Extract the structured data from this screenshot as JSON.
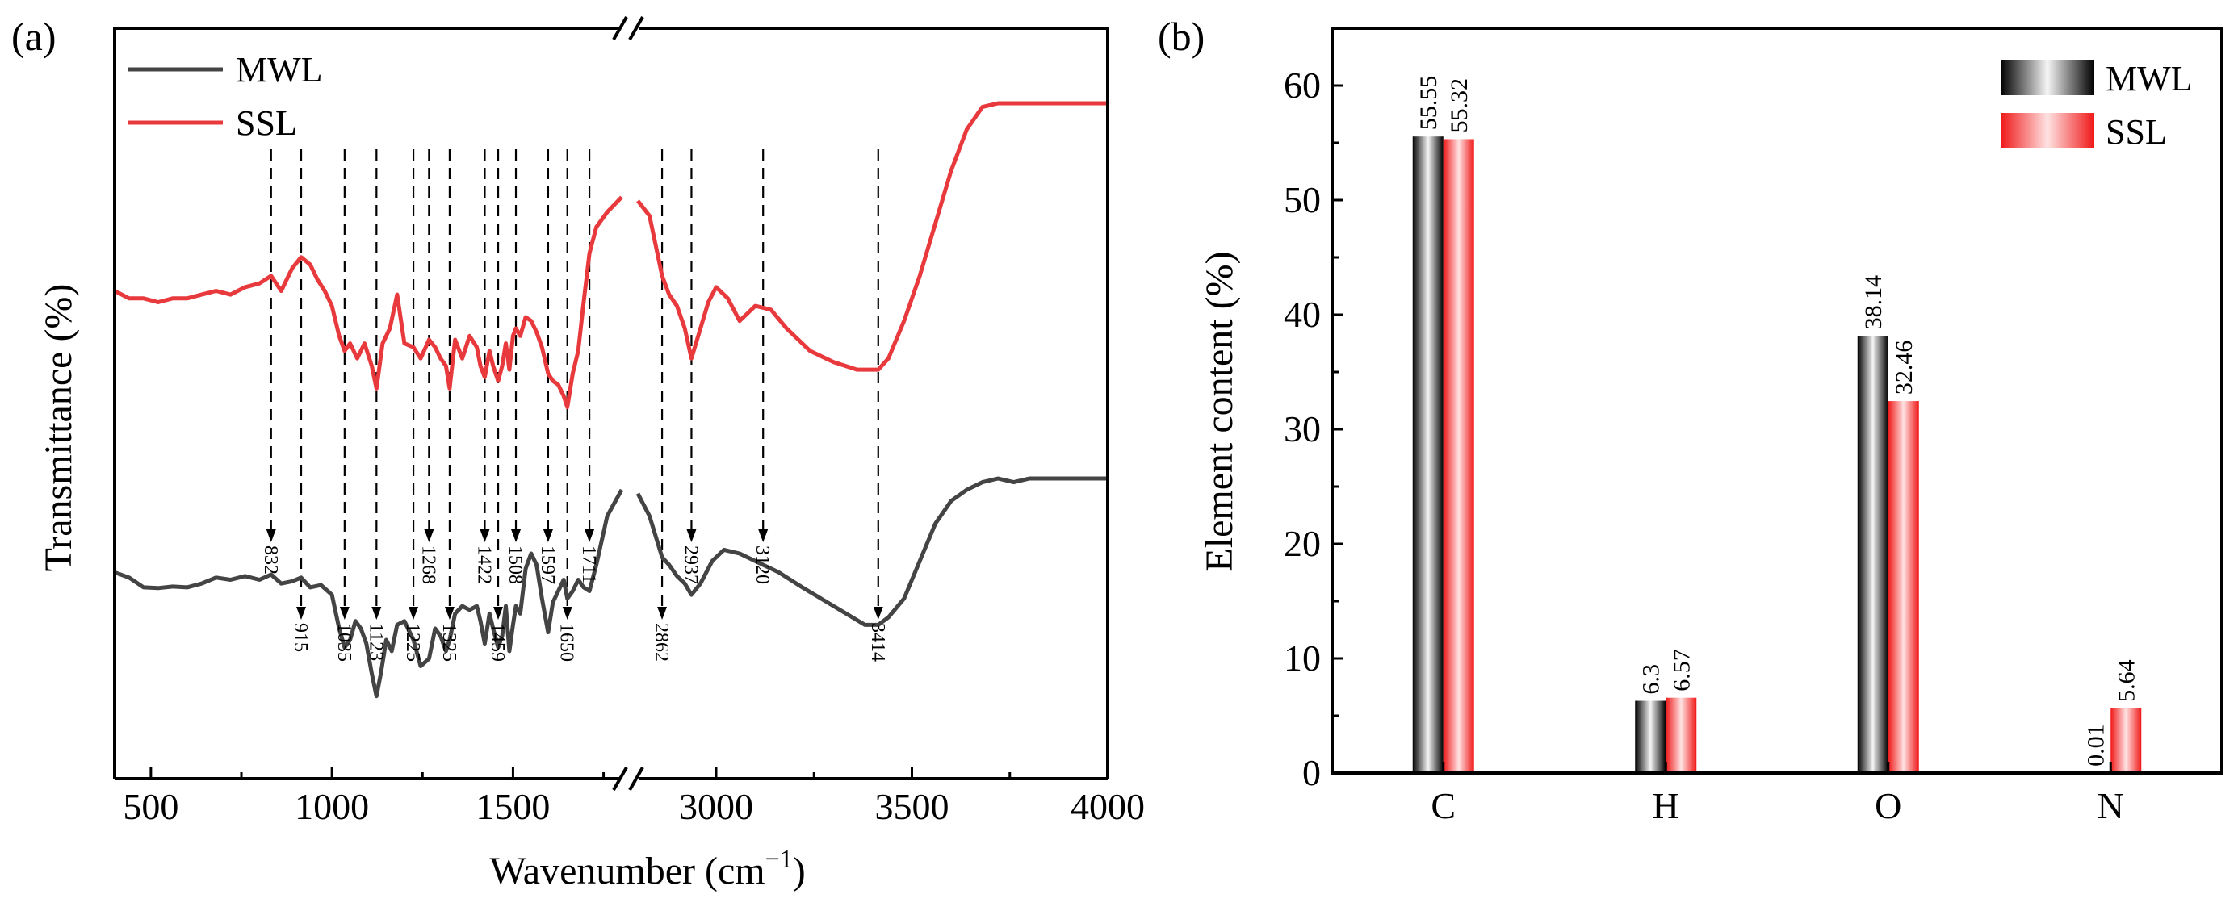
{
  "chart_data": [
    {
      "type": "line",
      "panel": "(a)",
      "title": "",
      "xlabel": "Wavenumber (cm",
      "xlabel_sup": "−1",
      "xlabel_close": ")",
      "ylabel": "Transmittance (%)",
      "xlim": [
        400,
        4000
      ],
      "axis_break": [
        1800,
        2800
      ],
      "xticks": [
        {
          "value": 500,
          "label": "500"
        },
        {
          "value": 1000,
          "label": "1000"
        },
        {
          "value": 1500,
          "label": "1500"
        },
        {
          "value": 3000,
          "label": "3000"
        },
        {
          "value": 3500,
          "label": "3500"
        },
        {
          "value": 4000,
          "label": "4000"
        }
      ],
      "legend": [
        "MWL",
        "SSL"
      ],
      "series": [
        {
          "name": "MWL",
          "color": "#444444",
          "x": [
            400,
            440,
            480,
            520,
            560,
            600,
            640,
            680,
            720,
            760,
            800,
            832,
            860,
            890,
            915,
            940,
            970,
            1000,
            1020,
            1035,
            1050,
            1065,
            1080,
            1095,
            1110,
            1123,
            1135,
            1150,
            1165,
            1180,
            1200,
            1225,
            1245,
            1268,
            1285,
            1300,
            1315,
            1325,
            1340,
            1360,
            1380,
            1400,
            1410,
            1422,
            1435,
            1445,
            1459,
            1470,
            1480,
            1490,
            1500,
            1508,
            1520,
            1535,
            1550,
            1565,
            1580,
            1597,
            1610,
            1625,
            1640,
            1650,
            1665,
            1680,
            1695,
            1711,
            1730,
            1760,
            1800,
            2800,
            2830,
            2862,
            2880,
            2900,
            2920,
            2937,
            2960,
            2990,
            3020,
            3060,
            3120,
            3160,
            3220,
            3300,
            3380,
            3414,
            3440,
            3480,
            3520,
            3560,
            3600,
            3640,
            3680,
            3720,
            3760,
            3800,
            3900,
            4000
          ],
          "y": [
            27.5,
            26.8,
            25.5,
            25.4,
            25.6,
            25.5,
            26.0,
            26.8,
            26.5,
            27.0,
            26.5,
            27.2,
            26.0,
            26.3,
            26.8,
            25.5,
            25.8,
            24.5,
            20.0,
            17.5,
            18.5,
            21.0,
            20.0,
            18.0,
            14.0,
            11.0,
            14.0,
            18.5,
            17.0,
            20.5,
            21.0,
            18.5,
            15.0,
            16.0,
            20.0,
            19.0,
            17.0,
            18.5,
            22.0,
            23.0,
            22.5,
            23.0,
            21.0,
            18.0,
            22.0,
            20.0,
            17.5,
            19.0,
            23.0,
            17.0,
            20.5,
            23.0,
            22.0,
            28.0,
            30.0,
            28.5,
            24.0,
            19.5,
            23.5,
            25.0,
            26.5,
            24.0,
            25.0,
            26.5,
            25.5,
            25.0,
            28.5,
            35.0,
            38.5,
            38.0,
            35.0,
            29.5,
            28.5,
            27.0,
            26.0,
            24.5,
            26.0,
            29.0,
            30.5,
            30.0,
            28.5,
            27.5,
            25.5,
            23.0,
            20.5,
            20.5,
            21.5,
            24.0,
            29.0,
            34.0,
            37.0,
            38.5,
            39.5,
            40.0,
            39.5,
            40.0,
            40.0,
            40.0
          ]
        },
        {
          "name": "SSL",
          "color": "#e8393d",
          "x": [
            400,
            440,
            480,
            520,
            560,
            600,
            640,
            680,
            720,
            760,
            800,
            832,
            860,
            890,
            915,
            940,
            960,
            980,
            1000,
            1020,
            1035,
            1050,
            1070,
            1090,
            1110,
            1123,
            1140,
            1160,
            1180,
            1200,
            1225,
            1245,
            1268,
            1285,
            1300,
            1315,
            1325,
            1340,
            1360,
            1380,
            1400,
            1410,
            1422,
            1435,
            1445,
            1459,
            1470,
            1480,
            1490,
            1500,
            1508,
            1520,
            1535,
            1550,
            1565,
            1580,
            1597,
            1610,
            1625,
            1640,
            1650,
            1665,
            1680,
            1695,
            1711,
            1730,
            1760,
            1800,
            2800,
            2830,
            2862,
            2880,
            2900,
            2920,
            2937,
            2960,
            2980,
            3000,
            3030,
            3060,
            3100,
            3140,
            3180,
            3240,
            3300,
            3360,
            3414,
            3440,
            3480,
            3520,
            3560,
            3600,
            3640,
            3680,
            3720,
            3760,
            3800,
            3900,
            4000
          ],
          "y": [
            65.0,
            64.0,
            64.0,
            63.5,
            64.0,
            64.0,
            64.5,
            65.0,
            64.5,
            65.5,
            66.0,
            67.0,
            65.0,
            68.0,
            69.5,
            68.5,
            66.5,
            65.0,
            63.0,
            59.0,
            57.0,
            58.0,
            56.0,
            58.0,
            55.0,
            52.0,
            58.0,
            60.0,
            64.5,
            58.0,
            57.5,
            56.0,
            58.5,
            57.5,
            56.0,
            55.0,
            52.0,
            58.5,
            56.0,
            59.0,
            57.5,
            55.0,
            53.5,
            57.0,
            55.0,
            53.0,
            55.0,
            58.0,
            54.5,
            59.0,
            60.0,
            59.0,
            61.5,
            61.0,
            59.5,
            57.5,
            54.0,
            53.0,
            52.5,
            51.0,
            49.5,
            54.0,
            57.0,
            63.5,
            70.0,
            73.5,
            75.5,
            77.5,
            77.0,
            75.0,
            67.0,
            64.5,
            63.0,
            60.0,
            56.0,
            60.0,
            63.5,
            65.5,
            64.0,
            61.0,
            63.0,
            62.5,
            60.0,
            57.0,
            55.5,
            54.5,
            54.5,
            56.0,
            61.0,
            67.0,
            74.0,
            81.0,
            86.5,
            89.5,
            90.0,
            90.0,
            90.0,
            90.0,
            90.0
          ]
        }
      ],
      "ylim": [
        0,
        100
      ],
      "annotations": [
        {
          "wavenumber": 832,
          "label": "832",
          "row": "upper"
        },
        {
          "wavenumber": 915,
          "label": "915",
          "row": "lower"
        },
        {
          "wavenumber": 1035,
          "label": "1035",
          "row": "lower"
        },
        {
          "wavenumber": 1123,
          "label": "1123",
          "row": "lower"
        },
        {
          "wavenumber": 1225,
          "label": "1225",
          "row": "lower"
        },
        {
          "wavenumber": 1268,
          "label": "1268",
          "row": "upper"
        },
        {
          "wavenumber": 1325,
          "label": "1325",
          "row": "lower"
        },
        {
          "wavenumber": 1422,
          "label": "1422",
          "row": "upper"
        },
        {
          "wavenumber": 1459,
          "label": "1459",
          "row": "lower"
        },
        {
          "wavenumber": 1508,
          "label": "1508",
          "row": "upper"
        },
        {
          "wavenumber": 1597,
          "label": "1597",
          "row": "upper"
        },
        {
          "wavenumber": 1650,
          "label": "1650",
          "row": "lower"
        },
        {
          "wavenumber": 1711,
          "label": "1711",
          "row": "upper"
        },
        {
          "wavenumber": 2862,
          "label": "2862",
          "row": "lower"
        },
        {
          "wavenumber": 2937,
          "label": "2937",
          "row": "upper"
        },
        {
          "wavenumber": 3120,
          "label": "3120",
          "row": "upper"
        },
        {
          "wavenumber": 3414,
          "label": "3414",
          "row": "lower"
        }
      ]
    },
    {
      "type": "bar",
      "panel": "(b)",
      "title": "",
      "xlabel": "",
      "ylabel": "Element content (%)",
      "ylim": [
        0,
        65
      ],
      "yticks": [
        0,
        10,
        20,
        30,
        40,
        50,
        60
      ],
      "categories": [
        "C",
        "H",
        "O",
        "N"
      ],
      "series": [
        {
          "name": "MWL",
          "color": "#111111",
          "values": [
            55.55,
            6.3,
            38.14,
            0.01
          ],
          "labels": [
            "55.55",
            "6.3",
            "38.14",
            "0.01"
          ]
        },
        {
          "name": "SSL",
          "color": "#f02a2a",
          "values": [
            55.32,
            6.57,
            32.46,
            5.64
          ],
          "labels": [
            "55.32",
            "6.57",
            "32.46",
            "5.64"
          ]
        }
      ],
      "legend": [
        "MWL",
        "SSL"
      ]
    }
  ]
}
